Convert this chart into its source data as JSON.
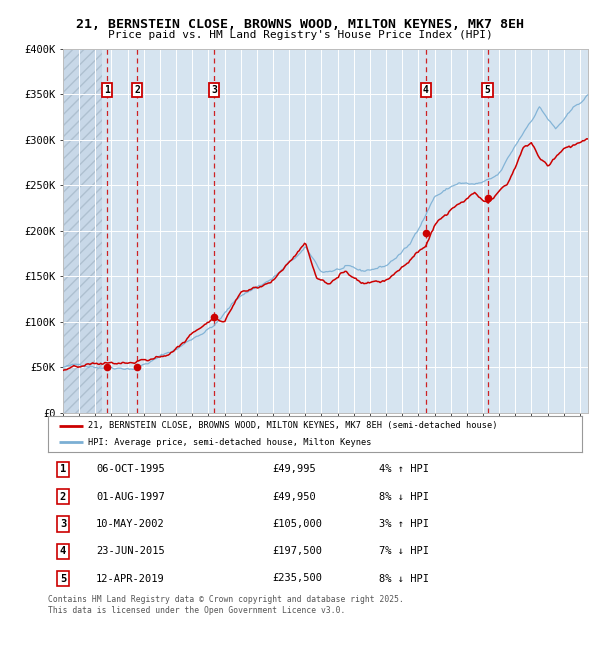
{
  "title": "21, BERNSTEIN CLOSE, BROWNS WOOD, MILTON KEYNES, MK7 8EH",
  "subtitle": "Price paid vs. HM Land Registry's House Price Index (HPI)",
  "bg_color": "#d6e4f0",
  "grid_color": "#ffffff",
  "red_line_color": "#cc0000",
  "blue_line_color": "#7bafd4",
  "sale_dates_x": [
    1995.75,
    1997.58,
    2002.36,
    2015.47,
    2019.28
  ],
  "sale_prices_y": [
    49995,
    49950,
    105000,
    197500,
    235500
  ],
  "sale_labels": [
    "1",
    "2",
    "3",
    "4",
    "5"
  ],
  "vline_color": "#cc0000",
  "ylim": [
    0,
    400000
  ],
  "yticks": [
    0,
    50000,
    100000,
    150000,
    200000,
    250000,
    300000,
    350000,
    400000
  ],
  "ytick_labels": [
    "£0",
    "£50K",
    "£100K",
    "£150K",
    "£200K",
    "£250K",
    "£300K",
    "£350K",
    "£400K"
  ],
  "xlim_start": 1993.0,
  "xlim_end": 2025.5,
  "hatch_end": 1995.4,
  "legend_red": "21, BERNSTEIN CLOSE, BROWNS WOOD, MILTON KEYNES, MK7 8EH (semi-detached house)",
  "legend_blue": "HPI: Average price, semi-detached house, Milton Keynes",
  "table_rows": [
    [
      "1",
      "06-OCT-1995",
      "£49,995",
      "4% ↑ HPI"
    ],
    [
      "2",
      "01-AUG-1997",
      "£49,950",
      "8% ↓ HPI"
    ],
    [
      "3",
      "10-MAY-2002",
      "£105,000",
      "3% ↑ HPI"
    ],
    [
      "4",
      "23-JUN-2015",
      "£197,500",
      "7% ↓ HPI"
    ],
    [
      "5",
      "12-APR-2019",
      "£235,500",
      "8% ↓ HPI"
    ]
  ],
  "footnote": "Contains HM Land Registry data © Crown copyright and database right 2025.\nThis data is licensed under the Open Government Licence v3.0."
}
